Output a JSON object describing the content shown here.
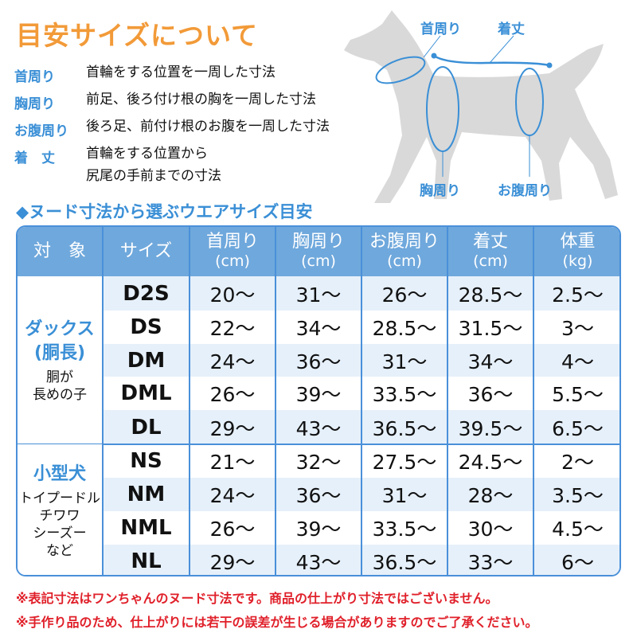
{
  "title": "目安サイズについて",
  "definitions": [
    {
      "term": "首周り",
      "desc": [
        "首輪をする位置を一周した寸法"
      ]
    },
    {
      "term": "胸周り",
      "desc": [
        "前足、後ろ付け根の胸を一周した寸法"
      ]
    },
    {
      "term": "お腹周り",
      "desc": [
        "後ろ足、前付け根のお腹を一周した寸法"
      ]
    },
    {
      "term": "着　丈",
      "desc": [
        "首輪をする位置から",
        "尻尾の手前までの寸法"
      ]
    }
  ],
  "diagram": {
    "neck": "首周り",
    "length": "着丈",
    "chest": "胸周り",
    "belly": "お腹周り"
  },
  "subtitle": "◆ヌード寸法から選ぶウエアサイズ目安",
  "table": {
    "headers": [
      {
        "label": "対　象",
        "unit": ""
      },
      {
        "label": "サイズ",
        "unit": ""
      },
      {
        "label": "首周り",
        "unit": "(cm)"
      },
      {
        "label": "胸周り",
        "unit": "(cm)"
      },
      {
        "label": "お腹周り",
        "unit": "(cm)"
      },
      {
        "label": "着丈",
        "unit": "(cm)"
      },
      {
        "label": "体重",
        "unit": "(kg)"
      }
    ],
    "groups": [
      {
        "name": "ダックス",
        "name2": "(胴長)",
        "sub": [
          "胴が",
          "長めの子"
        ],
        "rows": [
          [
            "D2S",
            "20〜",
            "31〜",
            "26〜",
            "28.5〜",
            "2.5〜"
          ],
          [
            "DS",
            "22〜",
            "34〜",
            "28.5〜",
            "31.5〜",
            "3〜"
          ],
          [
            "DM",
            "24〜",
            "36〜",
            "31〜",
            "34〜",
            "4〜"
          ],
          [
            "DML",
            "26〜",
            "39〜",
            "33.5〜",
            "36〜",
            "5.5〜"
          ],
          [
            "DL",
            "29〜",
            "43〜",
            "36.5〜",
            "39.5〜",
            "6.5〜"
          ]
        ]
      },
      {
        "name": "小型犬",
        "name2": "",
        "sub": [
          "トイプードル",
          "チワワ",
          "シーズー",
          "など"
        ],
        "rows": [
          [
            "NS",
            "21〜",
            "32〜",
            "27.5〜",
            "24.5〜",
            "2〜"
          ],
          [
            "NM",
            "24〜",
            "36〜",
            "31〜",
            "28〜",
            "3.5〜"
          ],
          [
            "NML",
            "26〜",
            "39〜",
            "33.5〜",
            "30〜",
            "4.5〜"
          ],
          [
            "NL",
            "29〜",
            "43〜",
            "36.5〜",
            "33〜",
            "6〜"
          ]
        ]
      }
    ]
  },
  "notes": [
    "※表記寸法はワンちゃんのヌード寸法です。商品の仕上がり寸法ではございません。",
    "※手作り品のため、仕上がりには若干の誤差が生じる場合がありますのでご了承ください。"
  ],
  "colors": {
    "title": "#f29a38",
    "accent": "#3a8fd6",
    "header": "#6fa8dc",
    "note": "#e0202a",
    "dog": "#d9d9d9"
  }
}
